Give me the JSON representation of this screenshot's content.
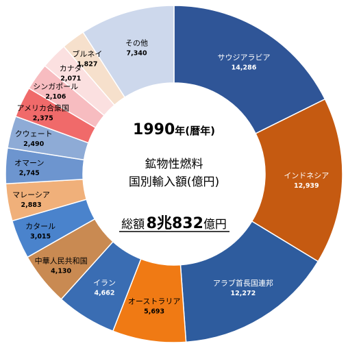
{
  "chart_data": {
    "type": "pie",
    "style": "donut",
    "title_year": "1990",
    "title_year_suffix": "年(暦年)",
    "title_line1": "鉱物性燃料",
    "title_line2": "国別輸入額(億円)",
    "total_label": "総額",
    "total_value": "8兆832",
    "total_unit": "億円",
    "slices": [
      {
        "label": "サウジアラビア",
        "value": 14286,
        "value_text": "14,286",
        "color": "#2f5597",
        "text_color": "#ffffff"
      },
      {
        "label": "インドネシア",
        "value": 12939,
        "value_text": "12,939",
        "color": "#c55a11",
        "text_color": "#ffffff"
      },
      {
        "label": "アラブ首長国連邦",
        "value": 12272,
        "value_text": "12,272",
        "color": "#2e5c9e",
        "text_color": "#ffffff"
      },
      {
        "label": "オーストラリア",
        "value": 5693,
        "value_text": "5,693",
        "color": "#f07a14",
        "text_color": "#000000"
      },
      {
        "label": "イラン",
        "value": 4662,
        "value_text": "4,662",
        "color": "#3a6db3",
        "text_color": "#ffffff"
      },
      {
        "label": "中華人民共和国",
        "value": 4130,
        "value_text": "4,130",
        "color": "#c98a52",
        "text_color": "#000000"
      },
      {
        "label": "カタール",
        "value": 3015,
        "value_text": "3,015",
        "color": "#4a83cc",
        "text_color": "#000000"
      },
      {
        "label": "マレーシア",
        "value": 2883,
        "value_text": "2,883",
        "color": "#f0b07a",
        "text_color": "#000000"
      },
      {
        "label": "オマーン",
        "value": 2745,
        "value_text": "2,745",
        "color": "#6d95cf",
        "text_color": "#000000"
      },
      {
        "label": "クウェート",
        "value": 2490,
        "value_text": "2,490",
        "color": "#8eabd6",
        "text_color": "#000000"
      },
      {
        "label": "アメリカ合衆国",
        "value": 2375,
        "value_text": "2,375",
        "color": "#f06a6a",
        "text_color": "#000000"
      },
      {
        "label": "シンガポール",
        "value": 2106,
        "value_text": "2,106",
        "color": "#f7bcc0",
        "text_color": "#000000"
      },
      {
        "label": "カナダ",
        "value": 2071,
        "value_text": "2,071",
        "color": "#fbe0e0",
        "text_color": "#000000"
      },
      {
        "label": "ブルネイ",
        "value": 1827,
        "value_text": "1,827",
        "color": "#f6e0cc",
        "text_color": "#000000"
      },
      {
        "label": "その他",
        "value": 7340,
        "value_text": "7,340",
        "color": "#cdd8ec",
        "text_color": "#000000"
      }
    ]
  }
}
